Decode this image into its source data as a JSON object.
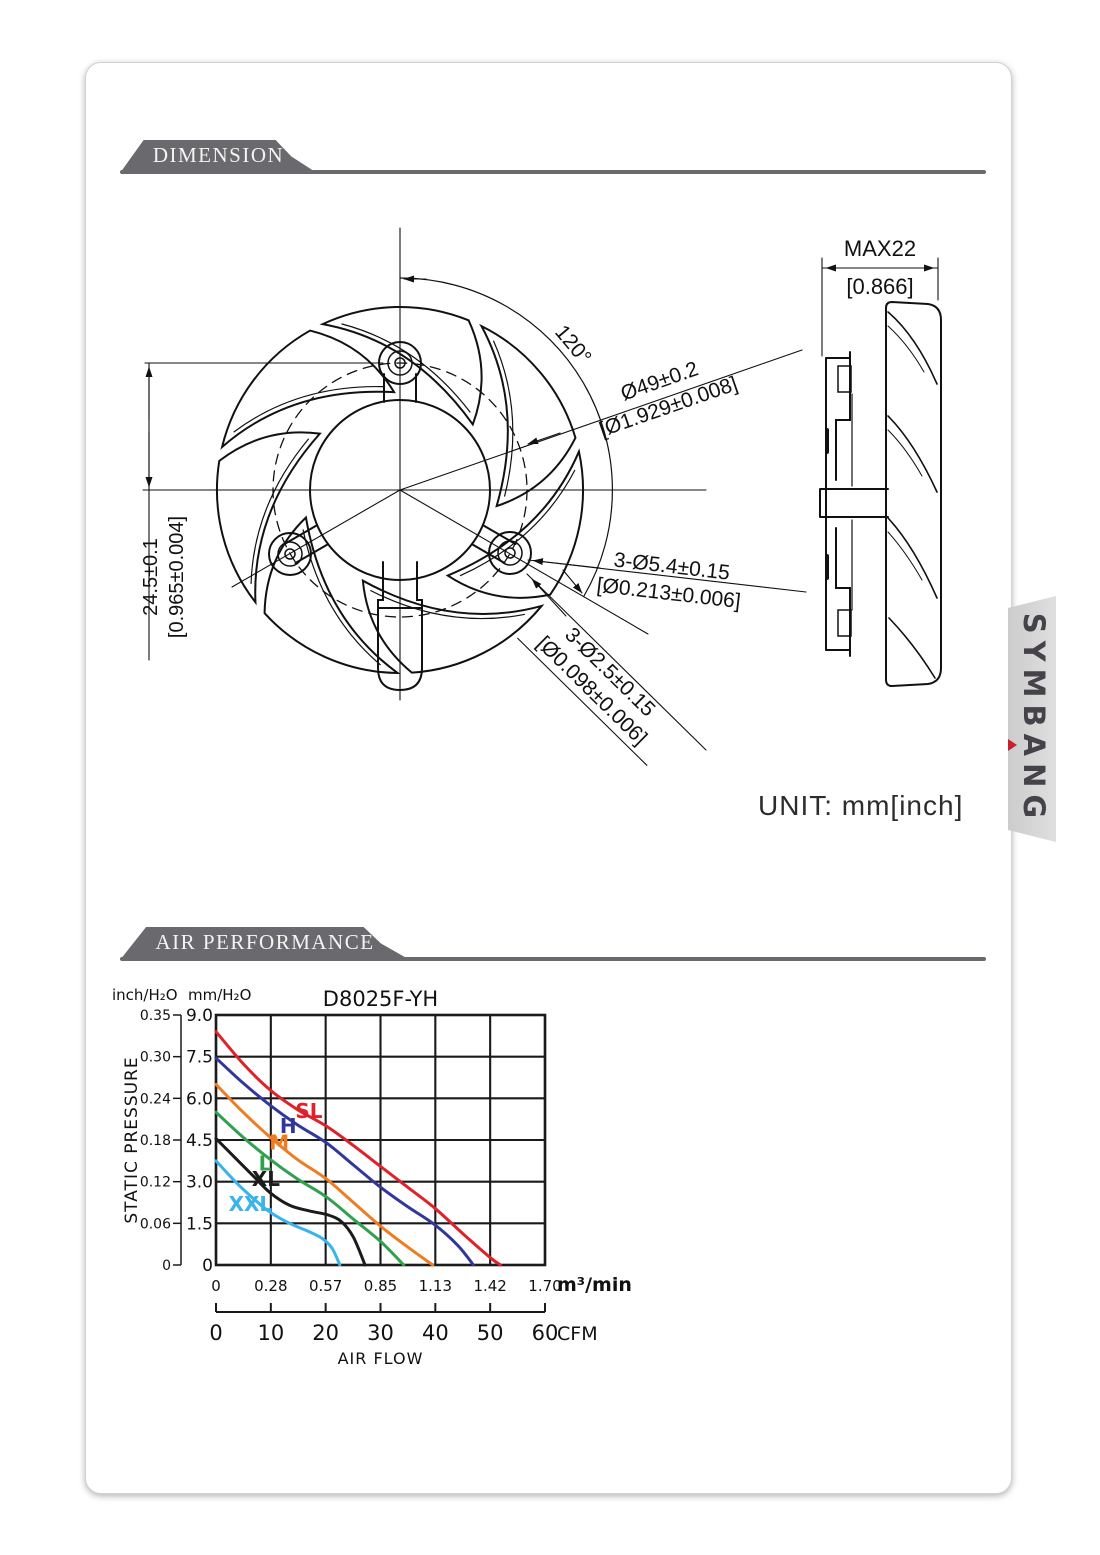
{
  "headers": {
    "dimension": "DIMENSION",
    "air_performance": "AIR PERFORMANCE"
  },
  "unit_note": "UNIT: mm[inch]",
  "brand": {
    "p1": "SYMB",
    "p2": "A",
    "p3": "NG"
  },
  "dimension_drawing": {
    "angle": "120°",
    "bolt_circle": {
      "metric": "Ø49±0.2",
      "inch": "[Ø1.929±0.008]"
    },
    "mount_holes": {
      "metric": "3-Ø5.4±0.15",
      "inch": "[Ø0.213±0.006]"
    },
    "small_holes": {
      "metric": "3-Ø2.5±0.15",
      "inch": "[Ø0.098±0.006]"
    },
    "center_height": {
      "metric": "24.5±0.1",
      "inch": "[0.965±0.004]"
    },
    "thickness": {
      "metric": "MAX22",
      "inch": "[0.866]"
    }
  },
  "chart_data": {
    "type": "line",
    "title": "D8025F-YH",
    "xlabel": "AIR FLOW",
    "ylabel": "STATIC PRESSURE",
    "grid": true,
    "legend_position": "on-curves",
    "xlim": [
      0,
      1.7
    ],
    "ylim": [
      0,
      9.0
    ],
    "x_unit_primary": "m³/min",
    "x_unit_secondary": "CFM",
    "y_unit_primary": "mm/H₂O",
    "y_unit_secondary": "inch/H₂O",
    "x_ticks": [
      {
        "m3min": "0",
        "cfm": "0",
        "v": 0
      },
      {
        "m3min": "0.28",
        "cfm": "10",
        "v": 0.2833
      },
      {
        "m3min": "0.57",
        "cfm": "20",
        "v": 0.5666
      },
      {
        "m3min": "0.85",
        "cfm": "30",
        "v": 0.85
      },
      {
        "m3min": "1.13",
        "cfm": "40",
        "v": 1.1333
      },
      {
        "m3min": "1.42",
        "cfm": "50",
        "v": 1.4166
      },
      {
        "m3min": "1.70",
        "cfm": "60",
        "v": 1.7
      }
    ],
    "y_ticks": [
      {
        "mm": "0",
        "inch": "0",
        "v": 0
      },
      {
        "mm": "1.5",
        "inch": "0.06",
        "v": 1.5
      },
      {
        "mm": "3.0",
        "inch": "0.12",
        "v": 3.0
      },
      {
        "mm": "4.5",
        "inch": "0.18",
        "v": 4.5
      },
      {
        "mm": "6.0",
        "inch": "0.24",
        "v": 6.0
      },
      {
        "mm": "7.5",
        "inch": "0.30",
        "v": 7.5
      },
      {
        "mm": "9.0",
        "inch": "0.35",
        "v": 9.0
      }
    ],
    "series": [
      {
        "name": "SL",
        "color": "#e02128",
        "label_at": [
          0.41,
          5.3
        ],
        "points": [
          [
            0,
            8.4
          ],
          [
            0.14,
            7.25
          ],
          [
            0.28,
            6.3
          ],
          [
            0.42,
            5.6
          ],
          [
            0.57,
            5.0
          ],
          [
            0.71,
            4.3
          ],
          [
            0.85,
            3.55
          ],
          [
            0.99,
            2.8
          ],
          [
            1.13,
            2.05
          ],
          [
            1.28,
            1.1
          ],
          [
            1.42,
            0.25
          ],
          [
            1.47,
            0
          ]
        ]
      },
      {
        "name": "H",
        "color": "#31379b",
        "label_at": [
          0.33,
          4.75
        ],
        "points": [
          [
            0,
            7.45
          ],
          [
            0.14,
            6.55
          ],
          [
            0.28,
            5.75
          ],
          [
            0.42,
            5.05
          ],
          [
            0.57,
            4.4
          ],
          [
            0.71,
            3.6
          ],
          [
            0.85,
            2.8
          ],
          [
            0.99,
            2.1
          ],
          [
            1.13,
            1.45
          ],
          [
            1.25,
            0.7
          ],
          [
            1.33,
            0
          ]
        ]
      },
      {
        "name": "M",
        "color": "#f07c21",
        "label_at": [
          0.275,
          4.15
        ],
        "points": [
          [
            0,
            6.5
          ],
          [
            0.14,
            5.5
          ],
          [
            0.28,
            4.6
          ],
          [
            0.42,
            3.8
          ],
          [
            0.57,
            3.1
          ],
          [
            0.71,
            2.25
          ],
          [
            0.85,
            1.4
          ],
          [
            0.99,
            0.65
          ],
          [
            1.12,
            0
          ]
        ]
      },
      {
        "name": "L",
        "color": "#2ea24d",
        "label_at": [
          0.22,
          3.4
        ],
        "points": [
          [
            0,
            5.5
          ],
          [
            0.14,
            4.6
          ],
          [
            0.28,
            3.8
          ],
          [
            0.42,
            3.1
          ],
          [
            0.57,
            2.45
          ],
          [
            0.71,
            1.65
          ],
          [
            0.85,
            0.85
          ],
          [
            0.97,
            0
          ]
        ]
      },
      {
        "name": "XL",
        "color": "#1b1b1b",
        "label_at": [
          0.185,
          2.85
        ],
        "points": [
          [
            0,
            4.55
          ],
          [
            0.1,
            3.85
          ],
          [
            0.2,
            3.15
          ],
          [
            0.28,
            2.6
          ],
          [
            0.38,
            2.15
          ],
          [
            0.48,
            1.95
          ],
          [
            0.58,
            1.8
          ],
          [
            0.65,
            1.55
          ],
          [
            0.71,
            1.0
          ],
          [
            0.77,
            0
          ]
        ]
      },
      {
        "name": "XXL",
        "color": "#38b4ea",
        "label_at": [
          0.065,
          1.95
        ],
        "points": [
          [
            0,
            3.75
          ],
          [
            0.1,
            3.0
          ],
          [
            0.2,
            2.35
          ],
          [
            0.28,
            1.9
          ],
          [
            0.38,
            1.5
          ],
          [
            0.48,
            1.2
          ],
          [
            0.55,
            0.95
          ],
          [
            0.6,
            0.6
          ],
          [
            0.64,
            0
          ]
        ]
      }
    ]
  }
}
